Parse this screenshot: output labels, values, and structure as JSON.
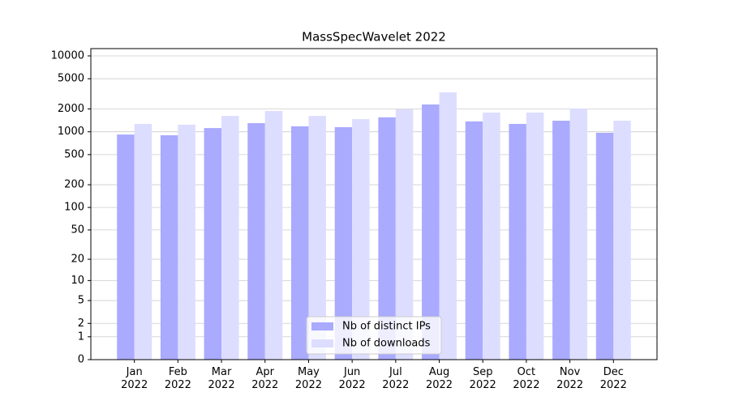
{
  "chart_data": {
    "type": "bar",
    "title": "MassSpecWavelet 2022",
    "categories": [
      "Jan\n2022",
      "Feb\n2022",
      "Mar\n2022",
      "Apr\n2022",
      "May\n2022",
      "Jun\n2022",
      "Jul\n2022",
      "Aug\n2022",
      "Sep\n2022",
      "Oct\n2022",
      "Nov\n2022",
      "Dec\n2022"
    ],
    "series": [
      {
        "name": "Nb of distinct IPs",
        "color": "#aaaaff",
        "values": [
          920,
          900,
          1120,
          1300,
          1180,
          1150,
          1550,
          2290,
          1370,
          1270,
          1400,
          970
        ]
      },
      {
        "name": "Nb of downloads",
        "color": "#ddddff",
        "values": [
          1270,
          1240,
          1620,
          1880,
          1620,
          1470,
          1980,
          3310,
          1790,
          1790,
          2030,
          1400
        ]
      }
    ],
    "yscale": "log1p",
    "ylim": [
      0,
      12470
    ],
    "yticks": [
      0,
      1,
      2,
      5,
      10,
      20,
      50,
      100,
      200,
      500,
      1000,
      2000,
      5000,
      10000
    ],
    "grid": true,
    "legend": "lower center"
  }
}
